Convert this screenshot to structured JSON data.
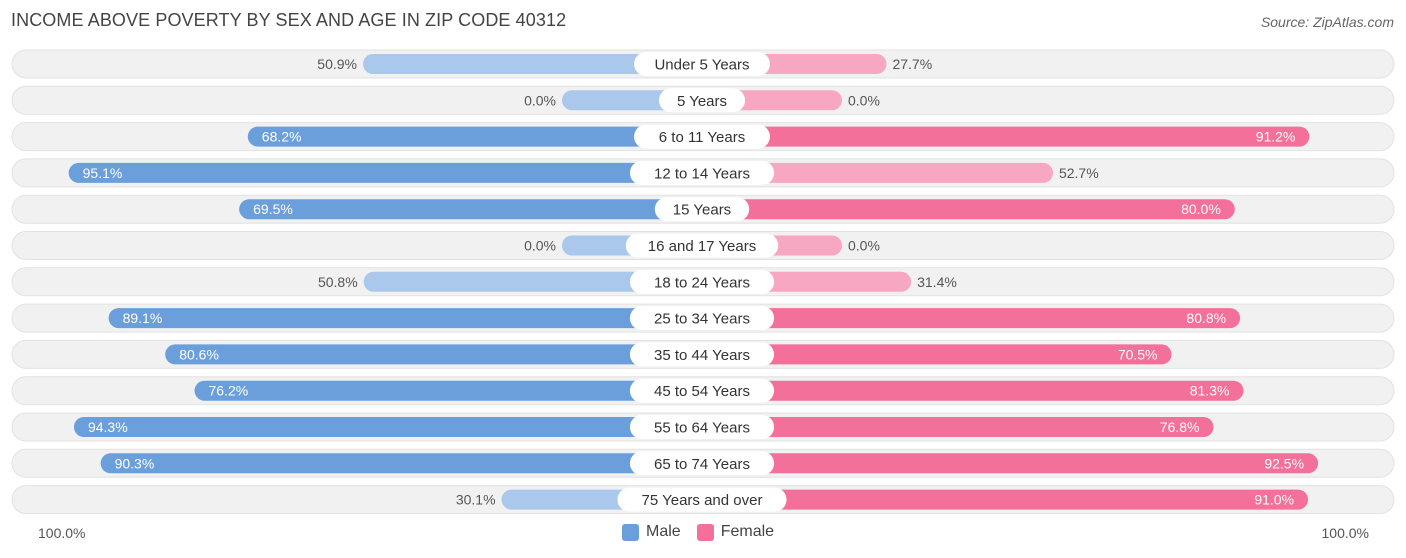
{
  "title": "INCOME ABOVE POVERTY BY SEX AND AGE IN ZIP CODE 40312",
  "source": "Source: ZipAtlas.com",
  "colors": {
    "male": "#6a9fdc",
    "male_light": "#a9c8ec",
    "female": "#f2709a",
    "female_light": "#f7a7c1",
    "row_bg": "#f1f1f1"
  },
  "legend": {
    "male": "Male",
    "female": "Female"
  },
  "axis": {
    "left": "100.0%",
    "right": "100.0%"
  },
  "chart_data": {
    "type": "bar",
    "orientation": "horizontal-diverging",
    "categories": [
      "Under 5 Years",
      "5 Years",
      "6 to 11 Years",
      "12 to 14 Years",
      "15 Years",
      "16 and 17 Years",
      "18 to 24 Years",
      "25 to 34 Years",
      "35 to 44 Years",
      "45 to 54 Years",
      "55 to 64 Years",
      "65 to 74 Years",
      "75 Years and over"
    ],
    "series": [
      {
        "name": "Male",
        "values": [
          50.9,
          0.0,
          68.2,
          95.1,
          69.5,
          0.0,
          50.8,
          89.1,
          80.6,
          76.2,
          94.3,
          90.3,
          30.1
        ],
        "labels": [
          "50.9%",
          "0.0%",
          "68.2%",
          "95.1%",
          "69.5%",
          "0.0%",
          "50.8%",
          "89.1%",
          "80.6%",
          "76.2%",
          "94.3%",
          "90.3%",
          "30.1%"
        ]
      },
      {
        "name": "Female",
        "values": [
          27.7,
          0.0,
          91.2,
          52.7,
          80.0,
          0.0,
          31.4,
          80.8,
          70.5,
          81.3,
          76.8,
          92.5,
          91.0
        ],
        "labels": [
          "27.7%",
          "0.0%",
          "91.2%",
          "52.7%",
          "80.0%",
          "0.0%",
          "31.4%",
          "80.8%",
          "70.5%",
          "81.3%",
          "76.8%",
          "92.5%",
          "91.0%"
        ]
      }
    ],
    "xlim": [
      0,
      100
    ],
    "legend_position": "bottom-center"
  }
}
